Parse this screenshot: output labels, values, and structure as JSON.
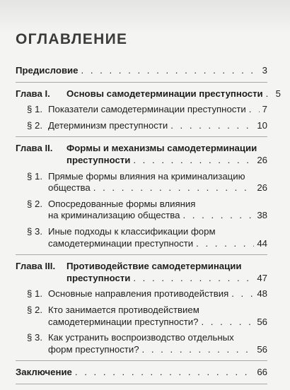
{
  "title": "ОГЛАВЛЕНИЕ",
  "preface": {
    "text": "Предисловие",
    "page": "3"
  },
  "chapters": [
    {
      "label": "Глава I.",
      "title_lines": [
        "Основы самодетерминации преступности"
      ],
      "page": "5",
      "sections": [
        {
          "label": "§ 1.",
          "lines": [
            "Показатели самодетерминации преступности"
          ],
          "page": "7"
        },
        {
          "label": "§ 2.",
          "lines": [
            "Детерминизм преступности"
          ],
          "page": "10"
        }
      ]
    },
    {
      "label": "Глава II.",
      "title_lines": [
        "Формы и механизмы самодетерминации",
        "преступности"
      ],
      "page": "26",
      "sections": [
        {
          "label": "§ 1.",
          "lines": [
            "Прямые формы влияния на криминализацию",
            "общества"
          ],
          "page": "26"
        },
        {
          "label": "§ 2.",
          "lines": [
            "Опосредованные формы влияния",
            "на криминализацию общества"
          ],
          "page": "38"
        },
        {
          "label": "§ 3.",
          "lines": [
            "Иные подходы к классификации форм",
            "самодетерминации преступности"
          ],
          "page": "44"
        }
      ]
    },
    {
      "label": "Глава III.",
      "title_lines": [
        "Противодействие самодетерминации",
        "преступности"
      ],
      "page": "47",
      "sections": [
        {
          "label": "§ 1.",
          "lines": [
            "Основные направления противодействия"
          ],
          "page": "48"
        },
        {
          "label": "§ 2.",
          "lines": [
            "Кто занимается противодействием",
            "самодетерминации преступности?"
          ],
          "page": "56"
        },
        {
          "label": "§ 3.",
          "lines": [
            "Как устранить воспроизводство отдельных",
            "форм преступности?"
          ],
          "page": "56"
        }
      ]
    }
  ],
  "conclusion": {
    "text": "Заключение",
    "page": "66"
  }
}
